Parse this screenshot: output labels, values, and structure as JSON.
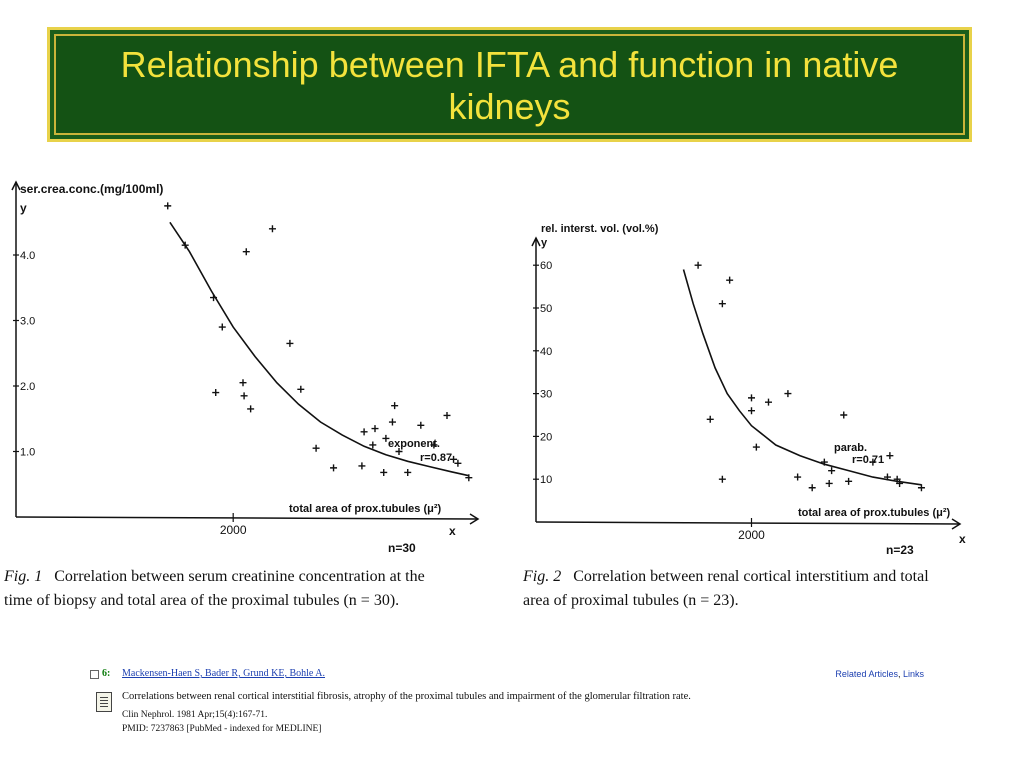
{
  "slide_title": "Relationship between IFTA and function in native kidneys",
  "colors": {
    "title_bg": "#145214",
    "title_text": "#f3e23c",
    "title_border": "#e8d24a",
    "ink": "#111111",
    "link": "#1c3fb0"
  },
  "chart_data": [
    {
      "type": "scatter",
      "ylabel": "ser.crea.conc.(mg/100ml)",
      "y_axis_letter": "y",
      "x_axis_letter": "x",
      "xlabel": "total area of prox.tubules (μ²)",
      "x_ticks": [
        "2000"
      ],
      "y_ticks": [
        "4.0",
        "3.0",
        "2.0",
        "1.0"
      ],
      "ylim": [
        0,
        5
      ],
      "fit": "exponent.",
      "r_label": "r=0.87",
      "n_label": "n=30",
      "points": [
        [
          1700,
          4.75
        ],
        [
          1780,
          4.15
        ],
        [
          1910,
          3.35
        ],
        [
          1950,
          2.9
        ],
        [
          1920,
          1.9
        ],
        [
          2060,
          4.05
        ],
        [
          2180,
          4.4
        ],
        [
          2260,
          2.65
        ],
        [
          2310,
          1.95
        ],
        [
          2045,
          2.05
        ],
        [
          2050,
          1.85
        ],
        [
          2080,
          1.65
        ],
        [
          2380,
          1.05
        ],
        [
          2460,
          0.75
        ],
        [
          2600,
          1.3
        ],
        [
          2650,
          1.35
        ],
        [
          2700,
          1.2
        ],
        [
          2730,
          1.45
        ],
        [
          2740,
          1.7
        ],
        [
          2760,
          1.0
        ],
        [
          2640,
          1.1
        ],
        [
          2590,
          0.78
        ],
        [
          2690,
          0.68
        ],
        [
          2800,
          0.68
        ],
        [
          2860,
          1.4
        ],
        [
          2920,
          1.1
        ],
        [
          2980,
          1.55
        ],
        [
          3010,
          0.88
        ],
        [
          3030,
          0.82
        ],
        [
          3080,
          0.6
        ]
      ],
      "fit_curve": [
        [
          1710,
          4.5
        ],
        [
          1800,
          4.05
        ],
        [
          1900,
          3.45
        ],
        [
          2000,
          2.9
        ],
        [
          2100,
          2.45
        ],
        [
          2200,
          2.05
        ],
        [
          2300,
          1.72
        ],
        [
          2400,
          1.45
        ],
        [
          2500,
          1.25
        ],
        [
          2600,
          1.08
        ],
        [
          2700,
          0.95
        ],
        [
          2800,
          0.85
        ],
        [
          2900,
          0.77
        ],
        [
          3000,
          0.69
        ],
        [
          3080,
          0.63
        ]
      ]
    },
    {
      "type": "scatter",
      "ylabel": "rel. interst. vol. (vol.%)",
      "y_axis_letter": "y",
      "x_axis_letter": "x",
      "xlabel": "total area of prox.tubules (μ²)",
      "x_ticks": [
        "2000"
      ],
      "y_ticks": [
        "60",
        "50",
        "40",
        "30",
        "20",
        "10"
      ],
      "ylim": [
        0,
        65
      ],
      "fit": "parab.",
      "r_label": "r=0.71",
      "n_label": "n=23",
      "points": [
        [
          1780,
          60
        ],
        [
          1830,
          24
        ],
        [
          1880,
          51
        ],
        [
          1910,
          56.5
        ],
        [
          1880,
          10
        ],
        [
          2000,
          29
        ],
        [
          2000,
          26
        ],
        [
          2020,
          17.5
        ],
        [
          2070,
          28
        ],
        [
          2150,
          30
        ],
        [
          2190,
          10.5
        ],
        [
          2250,
          8
        ],
        [
          2300,
          14
        ],
        [
          2330,
          12
        ],
        [
          2320,
          9
        ],
        [
          2380,
          25
        ],
        [
          2400,
          9.5
        ],
        [
          2500,
          14
        ],
        [
          2570,
          15.5
        ],
        [
          2560,
          10.5
        ],
        [
          2600,
          10
        ],
        [
          2610,
          9
        ],
        [
          2700,
          8
        ]
      ],
      "fit_curve": [
        [
          1720,
          59
        ],
        [
          1760,
          51
        ],
        [
          1800,
          44
        ],
        [
          1850,
          36
        ],
        [
          1900,
          30
        ],
        [
          1950,
          26
        ],
        [
          2000,
          22.5
        ],
        [
          2100,
          18
        ],
        [
          2200,
          15.5
        ],
        [
          2300,
          13.5
        ],
        [
          2400,
          12
        ],
        [
          2500,
          10.5
        ],
        [
          2600,
          9.5
        ],
        [
          2700,
          8.7
        ]
      ]
    }
  ],
  "captions": {
    "fig1_label": "Fig. 1",
    "fig1_line1": "Correlation between serum creatinine concentration at the",
    "fig1_line2": "time of biopsy and total area of the proximal tubules (n = 30).",
    "fig2_label": "Fig. 2",
    "fig2_line1": "Correlation between renal cortical interstitium and total",
    "fig2_line2": "area of proximal tubules (n = 23)."
  },
  "pubmed": {
    "number": "6:",
    "authors": "Mackensen-Haen S, Bader R, Grund KE, Bohle A.",
    "related": "Related Articles",
    "separator": ",",
    "links": "Links",
    "title": "Correlations between renal cortical interstitial fibrosis, atrophy of the proximal tubules and impairment of the glomerular filtration rate.",
    "citation": "Clin Nephrol. 1981 Apr;15(4):167-71.",
    "pmid": "PMID: 7237863 [PubMed - indexed for MEDLINE]"
  }
}
